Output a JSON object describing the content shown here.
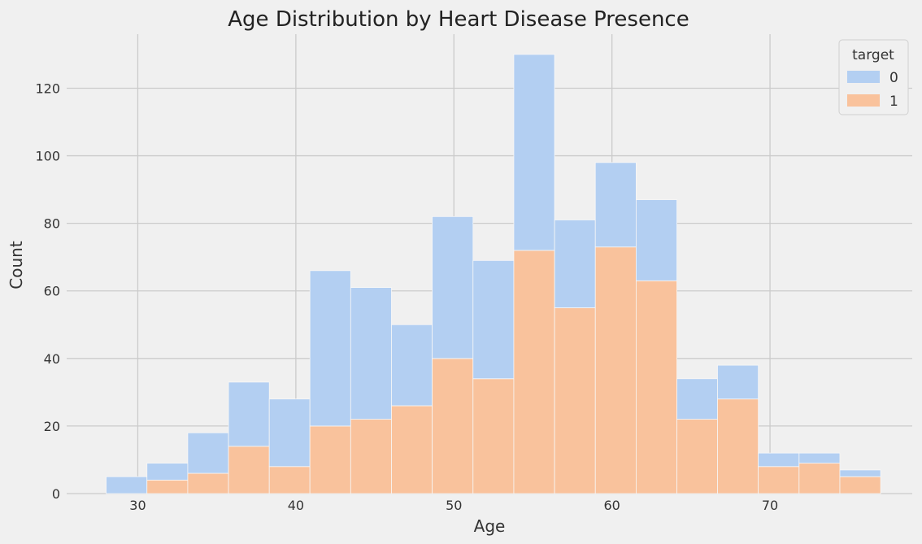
{
  "chart_data": {
    "type": "bar",
    "title": "Age Distribution by Heart Disease Presence",
    "xlabel": "Age",
    "ylabel": "Count",
    "xlim": [
      25.5,
      79.0
    ],
    "ylim": [
      0,
      136
    ],
    "x_ticks": [
      30,
      40,
      50,
      60,
      70
    ],
    "y_ticks": [
      0,
      20,
      40,
      60,
      80,
      100,
      120
    ],
    "grid": true,
    "stacked": true,
    "bin_edges": [
      28,
      30.58,
      33.16,
      35.74,
      38.32,
      40.89,
      43.47,
      46.05,
      48.63,
      51.21,
      53.79,
      56.37,
      58.95,
      61.53,
      64.11,
      66.68,
      69.26,
      71.84,
      74.42,
      77
    ],
    "legend": {
      "title": "target",
      "position": "top-right"
    },
    "series": [
      {
        "name": "0",
        "color": "#b3cff2",
        "values": [
          5,
          5,
          12,
          19,
          20,
          46,
          39,
          24,
          42,
          35,
          58,
          26,
          25,
          24,
          12,
          10,
          4,
          3,
          2
        ]
      },
      {
        "name": "1",
        "color": "#f9c29c",
        "values": [
          0,
          4,
          6,
          14,
          8,
          20,
          22,
          26,
          40,
          34,
          72,
          55,
          73,
          63,
          22,
          28,
          8,
          9,
          5
        ]
      }
    ]
  }
}
